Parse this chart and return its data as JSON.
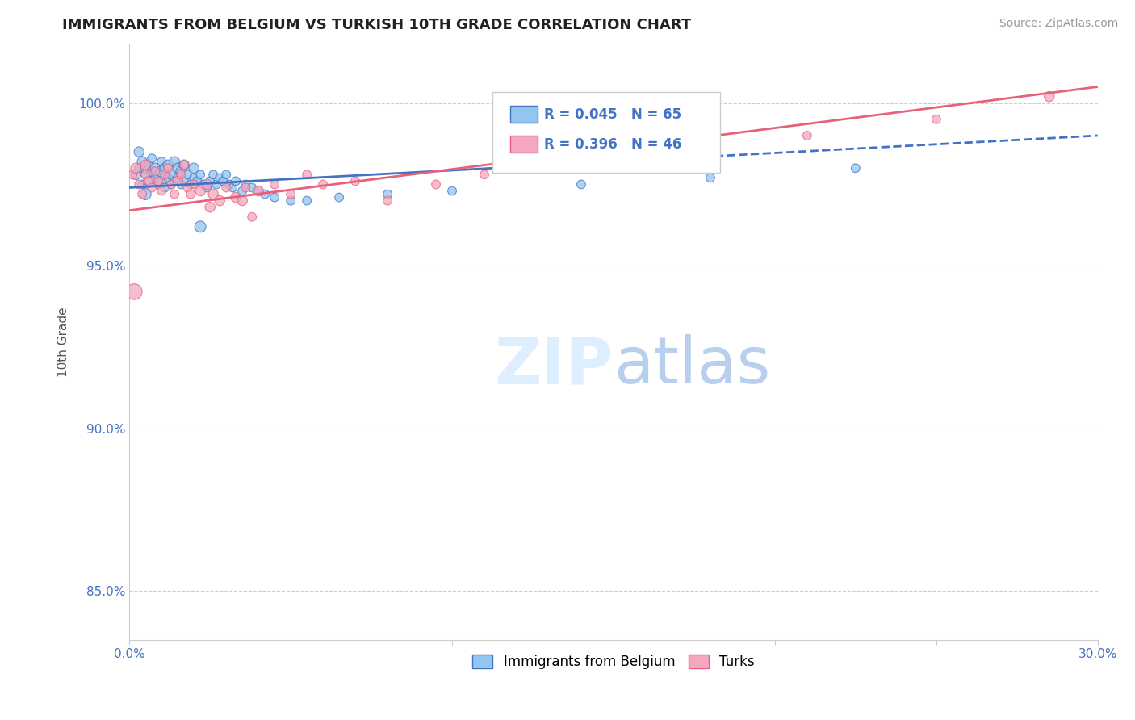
{
  "title": "IMMIGRANTS FROM BELGIUM VS TURKISH 10TH GRADE CORRELATION CHART",
  "source": "Source: ZipAtlas.com",
  "ylabel": "10th Grade",
  "y_ticks": [
    85.0,
    90.0,
    95.0,
    100.0
  ],
  "y_tick_labels": [
    "85.0%",
    "90.0%",
    "95.0%",
    "100.0%"
  ],
  "x_ticks": [
    0.0,
    5.0,
    10.0,
    15.0,
    20.0,
    25.0,
    30.0
  ],
  "x_tick_labels": [
    "0.0%",
    "",
    "",
    "",
    "",
    "",
    "30.0%"
  ],
  "xlim": [
    0.0,
    30.0
  ],
  "ylim": [
    83.5,
    101.8
  ],
  "legend_r1": "0.045",
  "legend_n1": "65",
  "legend_r2": "0.396",
  "legend_n2": "46",
  "color_blue": "#92C5F0",
  "color_pink": "#F4A7BE",
  "color_blue_line": "#4472C4",
  "color_pink_line": "#E8607A",
  "color_blue_dark": "#4472C4",
  "color_axis_label": "#4472C4",
  "blue_line_x0": 0.0,
  "blue_line_y0": 97.4,
  "blue_line_x1": 30.0,
  "blue_line_y1": 99.0,
  "blue_solid_end": 13.0,
  "pink_line_x0": 0.0,
  "pink_line_y0": 96.7,
  "pink_line_x1": 30.0,
  "pink_line_y1": 100.5,
  "blue_scatter_x": [
    0.2,
    0.3,
    0.3,
    0.4,
    0.4,
    0.5,
    0.5,
    0.5,
    0.6,
    0.6,
    0.7,
    0.7,
    0.8,
    0.8,
    0.9,
    0.9,
    1.0,
    1.0,
    1.0,
    1.1,
    1.1,
    1.2,
    1.2,
    1.3,
    1.3,
    1.4,
    1.4,
    1.5,
    1.5,
    1.6,
    1.6,
    1.7,
    1.7,
    1.8,
    1.9,
    2.0,
    2.0,
    2.1,
    2.2,
    2.3,
    2.4,
    2.5,
    2.6,
    2.7,
    2.8,
    2.9,
    3.0,
    3.1,
    3.2,
    3.3,
    3.5,
    3.6,
    3.8,
    4.0,
    4.2,
    4.5,
    5.0,
    5.5,
    6.5,
    8.0,
    10.0,
    14.0,
    18.0,
    22.5,
    2.2
  ],
  "blue_scatter_y": [
    97.8,
    98.0,
    98.5,
    97.5,
    98.2,
    97.8,
    98.0,
    97.2,
    98.1,
    97.6,
    98.3,
    97.9,
    97.7,
    98.0,
    97.5,
    97.8,
    98.2,
    97.6,
    97.9,
    97.4,
    98.0,
    97.7,
    98.1,
    97.5,
    97.8,
    97.6,
    98.2,
    97.7,
    98.0,
    97.5,
    97.9,
    97.6,
    98.1,
    97.8,
    97.5,
    97.7,
    98.0,
    97.6,
    97.8,
    97.5,
    97.4,
    97.6,
    97.8,
    97.5,
    97.7,
    97.6,
    97.8,
    97.5,
    97.4,
    97.6,
    97.3,
    97.5,
    97.4,
    97.3,
    97.2,
    97.1,
    97.0,
    97.0,
    97.1,
    97.2,
    97.3,
    97.5,
    97.7,
    98.0,
    96.2
  ],
  "blue_scatter_sizes": [
    80,
    60,
    80,
    60,
    80,
    60,
    80,
    100,
    60,
    80,
    60,
    80,
    60,
    80,
    60,
    80,
    60,
    80,
    100,
    60,
    80,
    60,
    80,
    60,
    80,
    60,
    80,
    60,
    80,
    60,
    80,
    60,
    80,
    60,
    60,
    60,
    80,
    60,
    60,
    60,
    60,
    60,
    60,
    60,
    60,
    60,
    60,
    60,
    60,
    60,
    60,
    60,
    60,
    60,
    60,
    60,
    60,
    60,
    60,
    60,
    60,
    60,
    60,
    60,
    100
  ],
  "pink_scatter_x": [
    0.1,
    0.2,
    0.3,
    0.4,
    0.5,
    0.5,
    0.6,
    0.7,
    0.8,
    0.9,
    1.0,
    1.1,
    1.2,
    1.3,
    1.4,
    1.5,
    1.6,
    1.7,
    1.8,
    1.9,
    2.0,
    2.2,
    2.4,
    2.6,
    2.8,
    3.0,
    3.3,
    3.6,
    4.0,
    4.5,
    5.0,
    5.5,
    6.0,
    7.0,
    8.0,
    9.5,
    11.0,
    14.0,
    17.0,
    21.0,
    25.0,
    28.5,
    3.5,
    2.5,
    0.15,
    3.8
  ],
  "pink_scatter_y": [
    97.8,
    98.0,
    97.5,
    97.2,
    97.8,
    98.1,
    97.6,
    97.4,
    97.9,
    97.6,
    97.3,
    97.8,
    98.0,
    97.5,
    97.2,
    97.6,
    97.8,
    98.1,
    97.4,
    97.2,
    97.5,
    97.3,
    97.5,
    97.2,
    97.0,
    97.4,
    97.1,
    97.4,
    97.3,
    97.5,
    97.2,
    97.8,
    97.5,
    97.6,
    97.0,
    97.5,
    97.8,
    98.2,
    98.5,
    99.0,
    99.5,
    100.2,
    97.0,
    96.8,
    94.2,
    96.5
  ],
  "pink_scatter_sizes": [
    60,
    80,
    60,
    60,
    60,
    80,
    60,
    60,
    60,
    60,
    60,
    60,
    60,
    60,
    60,
    80,
    60,
    60,
    60,
    60,
    60,
    80,
    80,
    80,
    80,
    60,
    80,
    60,
    80,
    60,
    60,
    60,
    60,
    60,
    60,
    60,
    60,
    60,
    60,
    60,
    60,
    80,
    80,
    80,
    200,
    60
  ]
}
